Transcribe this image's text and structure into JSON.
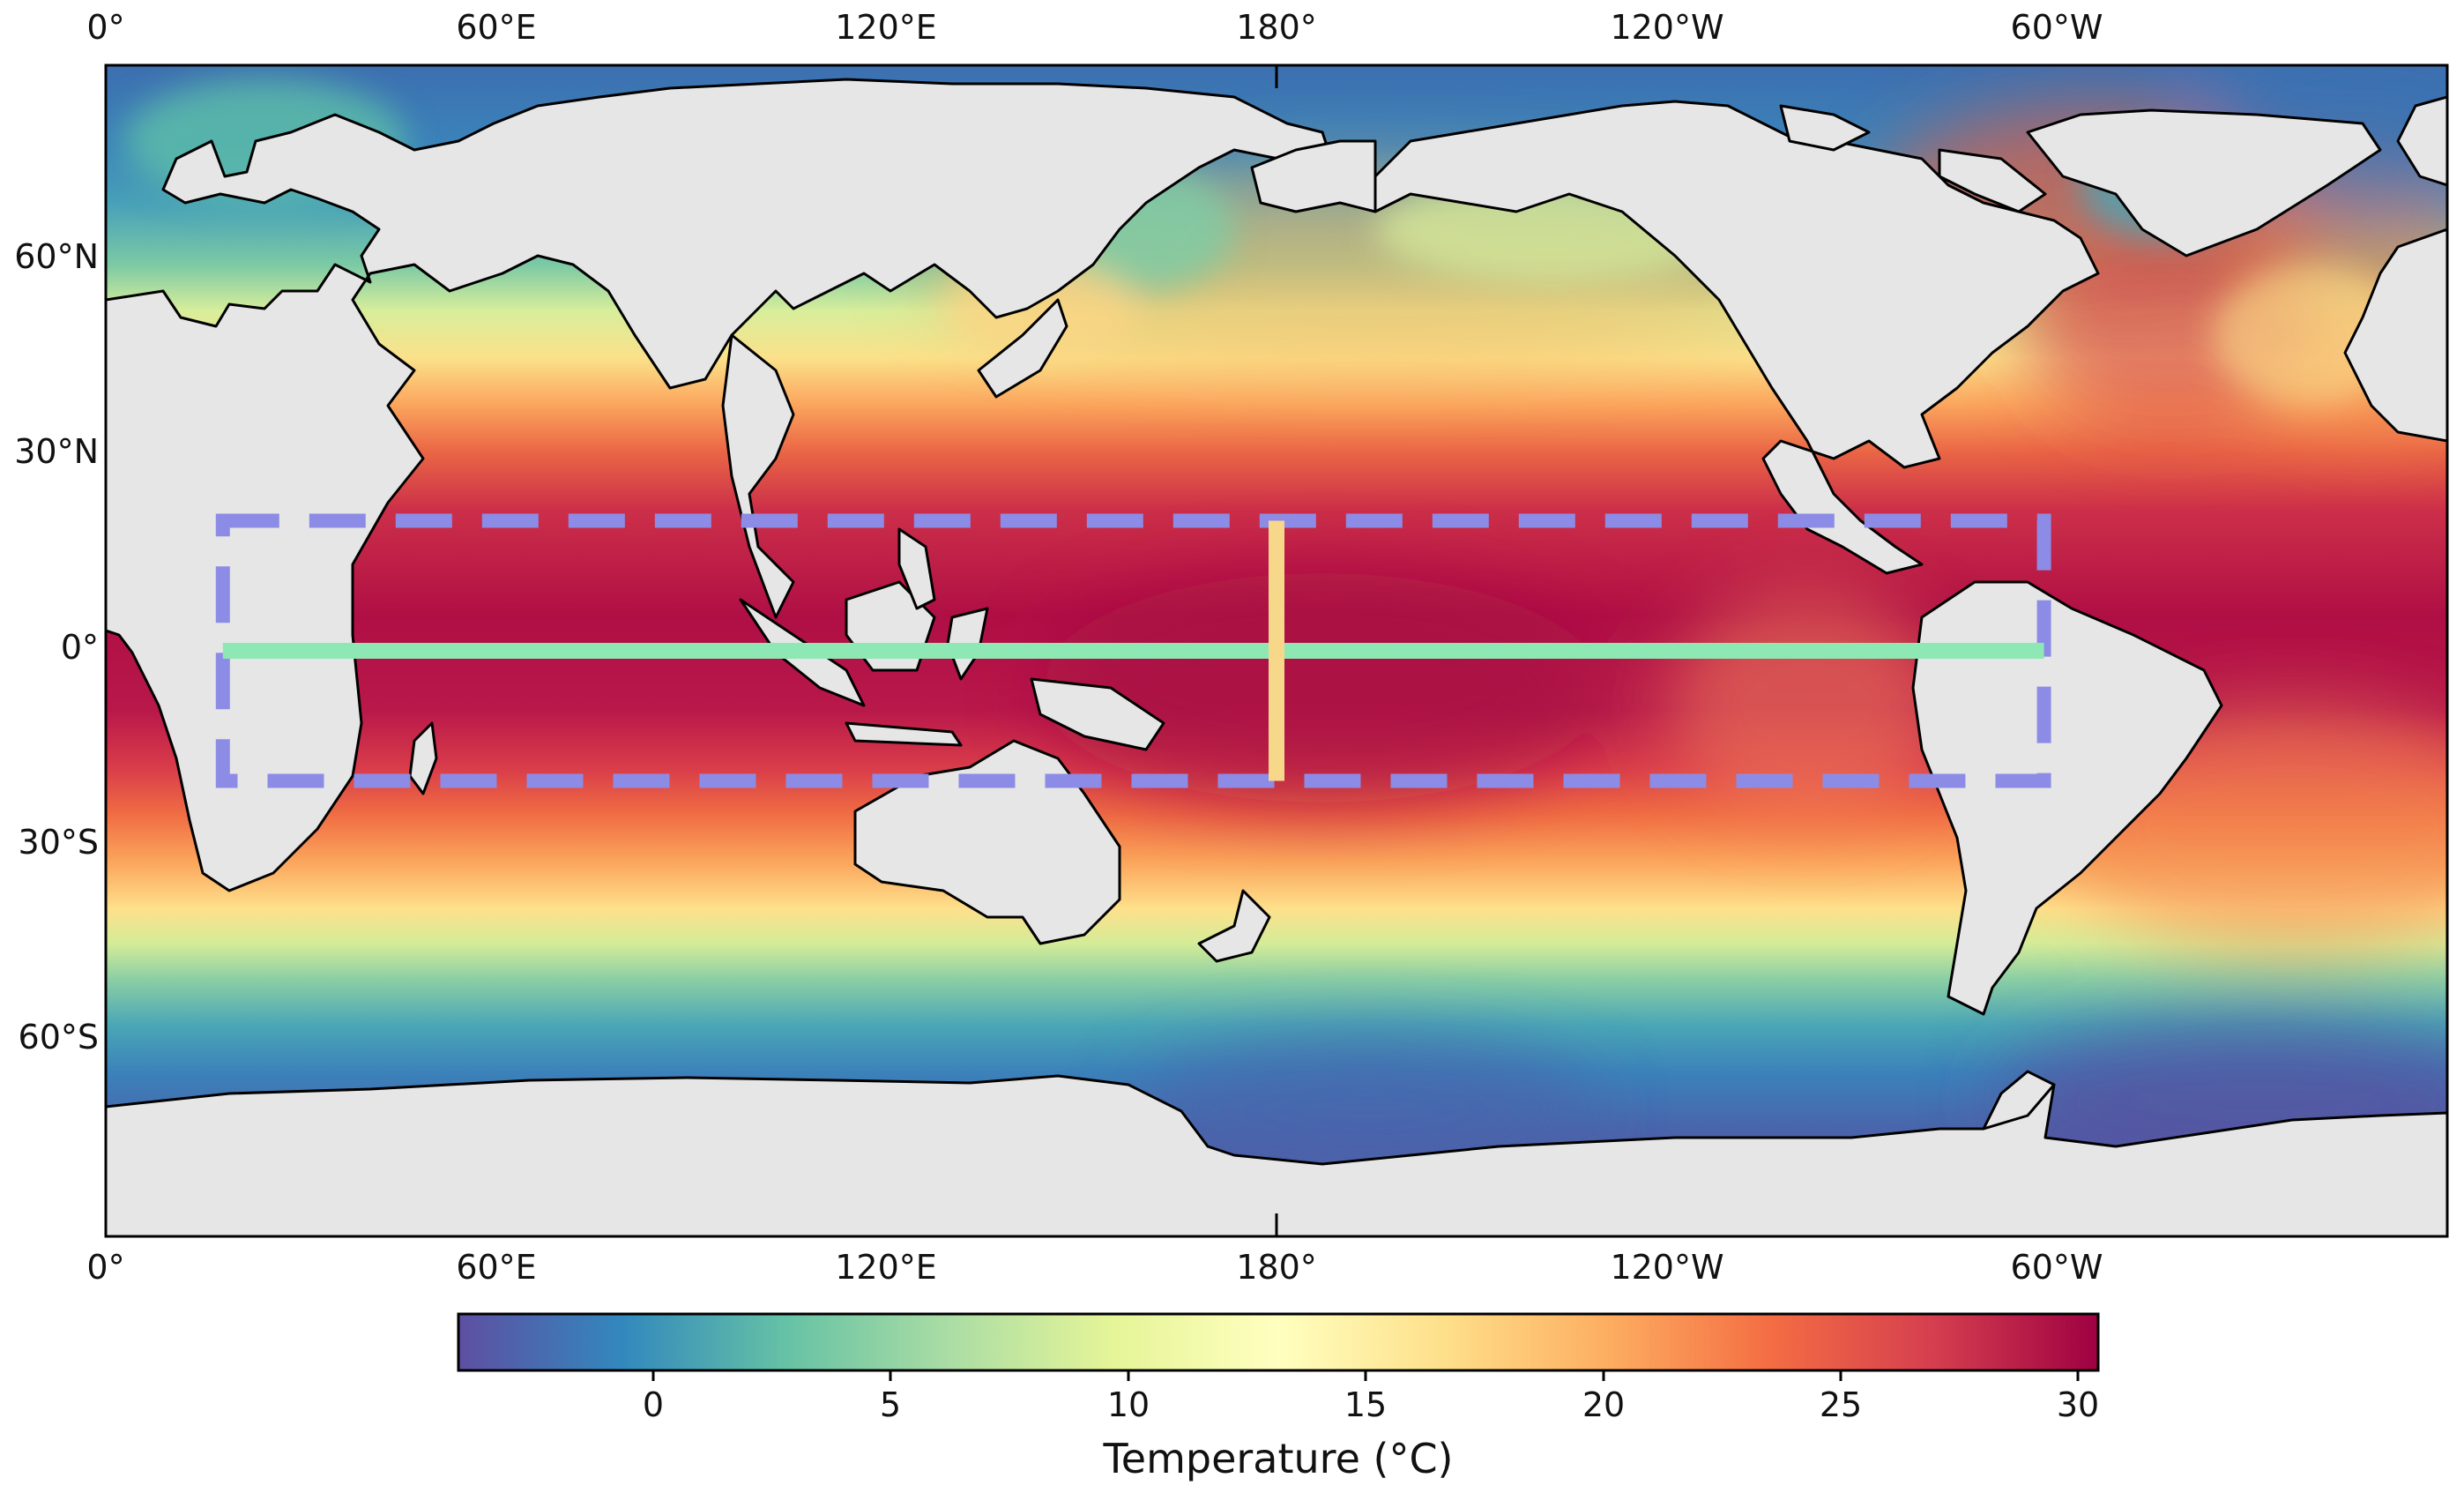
{
  "map": {
    "variable": "sea surface temperature",
    "projection": "PlateCarree, central longitude 180°",
    "extent": {
      "lon": [
        0,
        360
      ],
      "lat": [
        -90,
        90
      ]
    },
    "land_color": "#e6e6e6",
    "coastline_color": "#000000",
    "ticks": {
      "top": [
        "0°",
        "60°E",
        "120°E",
        "180°",
        "120°W",
        "60°W"
      ],
      "bottom": [
        "0°",
        "60°E",
        "120°E",
        "180°",
        "120°W",
        "60°W"
      ],
      "left": [
        "60°N",
        "30°N",
        "0°",
        "30°S",
        "60°S"
      ]
    }
  },
  "overlays": {
    "study_box": {
      "lon": [
        18,
        298
      ],
      "lat": [
        -20,
        20
      ],
      "color": "#8c8ce6",
      "style": "dashed"
    },
    "equator_line": {
      "lon": [
        18,
        298
      ],
      "lat": 0,
      "color": "#8ee8b4"
    },
    "meridian_line": {
      "lon": 180,
      "lat": [
        -20,
        20
      ],
      "color": "#f7d88a"
    }
  },
  "colorbar": {
    "colormap": "Spectral_r",
    "range": [
      -4,
      30.5
    ],
    "ticks": [
      "0",
      "5",
      "10",
      "15",
      "20",
      "25",
      "30"
    ],
    "label": "Temperature (°C)"
  }
}
